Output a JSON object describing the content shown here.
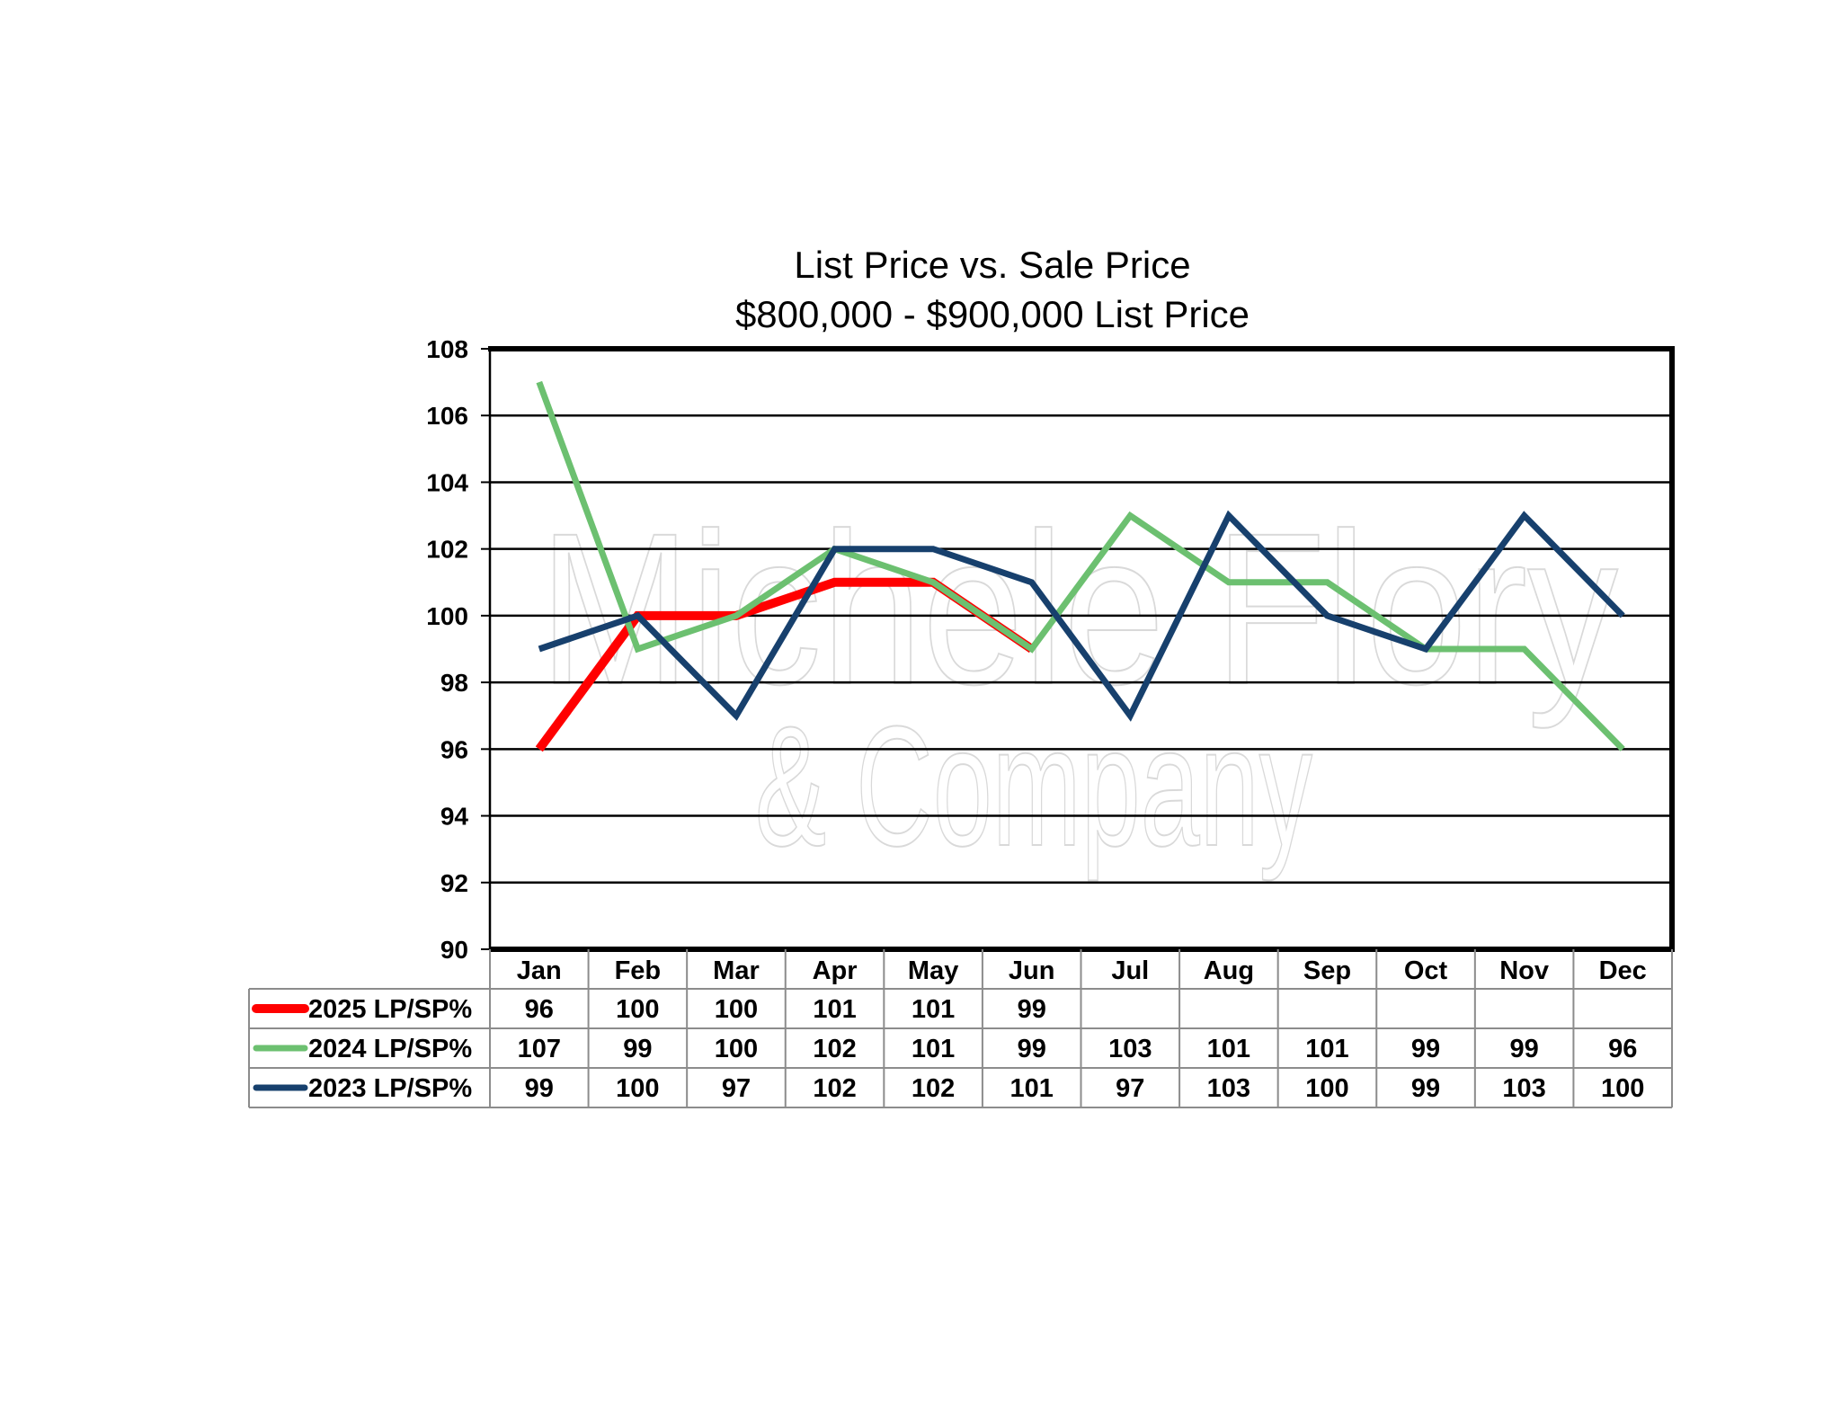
{
  "chart_data": {
    "type": "line",
    "title": "List Price vs. Sale Price",
    "subtitle": "$800,000 - $900,000 List Price",
    "categories": [
      "Jan",
      "Feb",
      "Mar",
      "Apr",
      "May",
      "Jun",
      "Jul",
      "Aug",
      "Sep",
      "Oct",
      "Nov",
      "Dec"
    ],
    "ylim": [
      90,
      108
    ],
    "yticks": [
      "90",
      "92",
      "94",
      "96",
      "98",
      "100",
      "102",
      "104",
      "106",
      "108"
    ],
    "grid": true,
    "legend": "data-table",
    "series": [
      {
        "name": "2025 LP/SP%",
        "color": "#ff0000",
        "values": [
          96,
          100,
          100,
          101,
          101,
          99,
          null,
          null,
          null,
          null,
          null,
          null
        ],
        "labels": [
          "96",
          "100",
          "100",
          "101",
          "101",
          "99",
          "",
          "",
          "",
          "",
          "",
          ""
        ]
      },
      {
        "name": "2024 LP/SP%",
        "color": "#6cc070",
        "values": [
          107,
          99,
          100,
          102,
          101,
          99,
          103,
          101,
          101,
          99,
          99,
          96
        ],
        "labels": [
          "107",
          "99",
          "100",
          "102",
          "101",
          "99",
          "103",
          "101",
          "101",
          "99",
          "99",
          "96"
        ]
      },
      {
        "name": "2023 LP/SP%",
        "color": "#17406d",
        "values": [
          99,
          100,
          97,
          102,
          102,
          101,
          97,
          103,
          100,
          99,
          103,
          100
        ],
        "labels": [
          "99",
          "100",
          "97",
          "102",
          "102",
          "101",
          "97",
          "103",
          "100",
          "99",
          "103",
          "100"
        ]
      }
    ]
  },
  "watermark": {
    "line1": "Michele Flory",
    "line2": "& Company"
  }
}
